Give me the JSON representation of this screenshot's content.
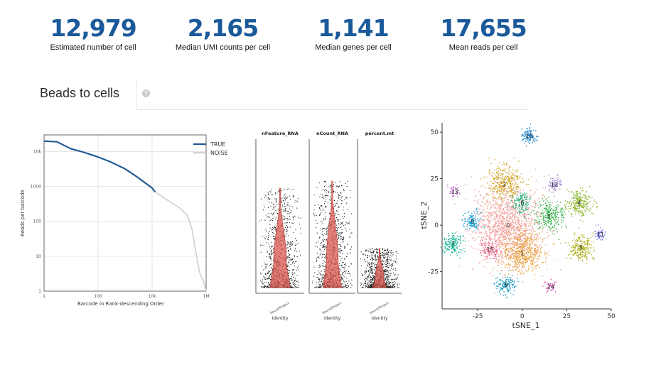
{
  "stats": [
    {
      "value": "12,979",
      "label": "Estimated number of cell"
    },
    {
      "value": "2,165",
      "label": "Median UMI counts per cell"
    },
    {
      "value": "1,141",
      "label": "Median genes per cell"
    },
    {
      "value": "17,655",
      "label": "Mean reads per cell"
    }
  ],
  "tabs": {
    "active": "Beads to cells"
  },
  "help_icon": "?",
  "colors": {
    "accent": "#1b5a9a",
    "true_line": "#1f5a94",
    "noise_line": "#cfcfcf",
    "violin": "#d9564d"
  },
  "barcode_chart": {
    "type": "line",
    "xlabel": "Barcode in Rank-descending Order",
    "ylabel": "Reads per barcode",
    "x_ticks": [
      "1",
      "100",
      "10k",
      "1M"
    ],
    "y_ticks": [
      "10k",
      "1000",
      "100",
      "10",
      "1"
    ],
    "legend": [
      "TRUE",
      "NOISE"
    ]
  },
  "violin_chart": {
    "panels": [
      {
        "title": "nFeature_RNA",
        "xtick": "SeuratProject",
        "xlabel": "Identity"
      },
      {
        "title": "nCount_RNA",
        "xtick": "SeuratProject",
        "xlabel": "Identity"
      },
      {
        "title": "percent.mt",
        "xtick": "SeuratProject",
        "xlabel": "Identity"
      }
    ]
  },
  "tsne_chart": {
    "type": "scatter",
    "xlabel": "tSNE_1",
    "ylabel": "tSNE_2",
    "x_ticks": [
      "-25",
      "0",
      "25",
      "50"
    ],
    "y_ticks": [
      "50",
      "25",
      "0",
      "-25"
    ],
    "clusters": [
      "0",
      "1",
      "2",
      "3",
      "4",
      "5",
      "6",
      "7",
      "8",
      "9",
      "10",
      "11",
      "12",
      "13",
      "14",
      "15"
    ]
  },
  "chart_data": [
    {
      "type": "line",
      "title": "",
      "xlabel": "Barcode in Rank-descending Order",
      "ylabel": "Reads per barcode",
      "xscale": "log",
      "yscale": "log",
      "xlim": [
        1,
        1000000
      ],
      "ylim": [
        1,
        30000
      ],
      "series": [
        {
          "name": "TRUE",
          "x": [
            1,
            3,
            8,
            10,
            30,
            100,
            300,
            1000,
            3000,
            10000,
            13000
          ],
          "y": [
            20000,
            19000,
            13000,
            12000,
            9500,
            7000,
            5000,
            3200,
            1800,
            900,
            700
          ]
        },
        {
          "name": "NOISE",
          "x": [
            13000,
            30000,
            100000,
            200000,
            300000,
            400000,
            500000,
            600000,
            800000,
            1000000
          ],
          "y": [
            700,
            450,
            250,
            150,
            60,
            15,
            6,
            3,
            2,
            1
          ]
        }
      ]
    },
    {
      "type": "violin",
      "panels": [
        "nFeature_RNA",
        "nCount_RNA",
        "percent.mt"
      ]
    },
    {
      "type": "scatter",
      "xlabel": "tSNE_1",
      "ylabel": "tSNE_2",
      "xlim": [
        -45,
        50
      ],
      "ylim": [
        -45,
        55
      ],
      "clusters": [
        {
          "id": "0",
          "x": -8,
          "y": 0,
          "color": "#f1a4a0"
        },
        {
          "id": "1",
          "x": 0,
          "y": -15,
          "color": "#e8a23c"
        },
        {
          "id": "2",
          "x": -10,
          "y": 22,
          "color": "#d4a72c"
        },
        {
          "id": "3",
          "x": 15,
          "y": 5,
          "color": "#38b34a"
        },
        {
          "id": "4",
          "x": 32,
          "y": 12,
          "color": "#8fb830"
        },
        {
          "id": "5",
          "x": 33,
          "y": -12,
          "color": "#b3b52a"
        },
        {
          "id": "6",
          "x": 0,
          "y": 12,
          "color": "#1fb57a"
        },
        {
          "id": "7",
          "x": -39,
          "y": -10,
          "color": "#1cb495"
        },
        {
          "id": "8",
          "x": -9,
          "y": -32,
          "color": "#1a9fc6"
        },
        {
          "id": "9",
          "x": -28,
          "y": 2,
          "color": "#21a9d9"
        },
        {
          "id": "10",
          "x": 4,
          "y": 48,
          "color": "#1f86d0"
        },
        {
          "id": "11",
          "x": 44,
          "y": -5,
          "color": "#7f7fe6"
        },
        {
          "id": "12",
          "x": 18,
          "y": 22,
          "color": "#a78ad8"
        },
        {
          "id": "13",
          "x": -38,
          "y": 18,
          "color": "#c26ad1"
        },
        {
          "id": "14",
          "x": 16,
          "y": -33,
          "color": "#d954b6"
        },
        {
          "id": "15",
          "x": -18,
          "y": -13,
          "color": "#ec6c93"
        }
      ]
    }
  ]
}
